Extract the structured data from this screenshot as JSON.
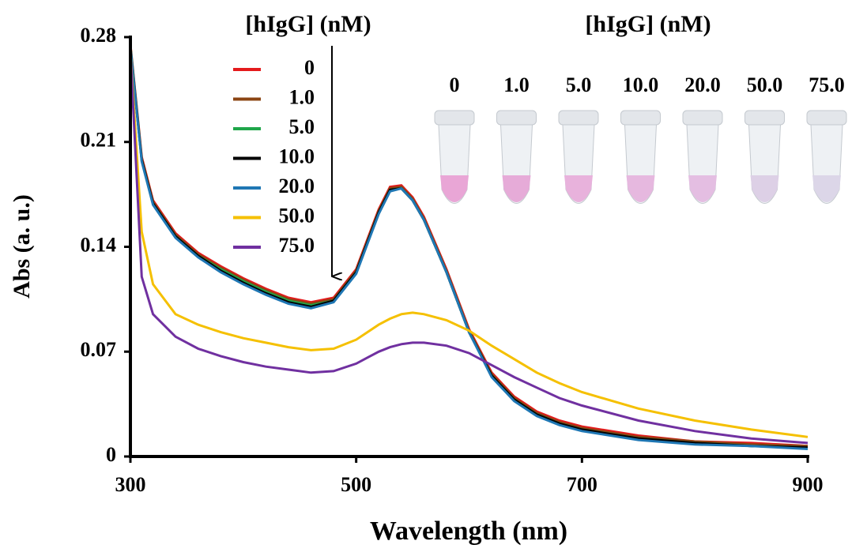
{
  "chart_data": {
    "type": "line",
    "x_label": "Wavelength (nm)",
    "y_label": "Abs (a. u.)",
    "legend_title": "[hIgG] (nM)",
    "inset_title": "[hIgG] (nM)",
    "inset_labels": [
      "0",
      "1.0",
      "5.0",
      "10.0",
      "20.0",
      "50.0",
      "75.0"
    ],
    "xlim": [
      300,
      900
    ],
    "xticks": [
      300,
      500,
      700,
      900
    ],
    "ylim": [
      0,
      0.28
    ],
    "yticks": [
      0,
      0.07,
      0.14,
      0.21,
      0.28
    ],
    "x": [
      300,
      310,
      320,
      340,
      360,
      380,
      400,
      420,
      440,
      460,
      480,
      500,
      510,
      520,
      530,
      540,
      550,
      560,
      580,
      600,
      620,
      640,
      660,
      680,
      700,
      750,
      800,
      850,
      900
    ],
    "series": [
      {
        "name": "0",
        "color": "#e41a1c",
        "values": [
          0.275,
          0.2,
          0.171,
          0.149,
          0.136,
          0.127,
          0.119,
          0.112,
          0.106,
          0.103,
          0.106,
          0.125,
          0.145,
          0.165,
          0.18,
          0.181,
          0.173,
          0.16,
          0.125,
          0.085,
          0.056,
          0.04,
          0.03,
          0.024,
          0.02,
          0.014,
          0.01,
          0.009,
          0.007
        ]
      },
      {
        "name": "1.0",
        "color": "#8b4513",
        "values": [
          0.274,
          0.199,
          0.17,
          0.148,
          0.135,
          0.126,
          0.118,
          0.111,
          0.105,
          0.102,
          0.105,
          0.124,
          0.144,
          0.164,
          0.179,
          0.18,
          0.172,
          0.159,
          0.124,
          0.084,
          0.055,
          0.039,
          0.029,
          0.023,
          0.019,
          0.013,
          0.01,
          0.008,
          0.007
        ]
      },
      {
        "name": "5.0",
        "color": "#1fa64a",
        "values": [
          0.274,
          0.198,
          0.169,
          0.147,
          0.134,
          0.125,
          0.117,
          0.11,
          0.104,
          0.101,
          0.104,
          0.123,
          0.143,
          0.163,
          0.178,
          0.179,
          0.171,
          0.158,
          0.123,
          0.083,
          0.054,
          0.038,
          0.028,
          0.022,
          0.018,
          0.012,
          0.009,
          0.007,
          0.006
        ]
      },
      {
        "name": "10.0",
        "color": "#000000",
        "values": [
          0.273,
          0.198,
          0.169,
          0.147,
          0.134,
          0.124,
          0.116,
          0.109,
          0.103,
          0.1,
          0.104,
          0.123,
          0.143,
          0.163,
          0.178,
          0.179,
          0.171,
          0.158,
          0.123,
          0.083,
          0.054,
          0.038,
          0.028,
          0.022,
          0.018,
          0.012,
          0.009,
          0.007,
          0.006
        ]
      },
      {
        "name": "20.0",
        "color": "#1f77b4",
        "values": [
          0.273,
          0.197,
          0.168,
          0.146,
          0.133,
          0.123,
          0.115,
          0.108,
          0.102,
          0.099,
          0.103,
          0.122,
          0.142,
          0.162,
          0.177,
          0.179,
          0.171,
          0.158,
          0.123,
          0.083,
          0.053,
          0.037,
          0.027,
          0.021,
          0.017,
          0.011,
          0.008,
          0.007,
          0.005
        ]
      },
      {
        "name": "50.0",
        "color": "#f5c000",
        "values": [
          0.27,
          0.15,
          0.115,
          0.095,
          0.088,
          0.083,
          0.079,
          0.076,
          0.073,
          0.071,
          0.072,
          0.078,
          0.083,
          0.088,
          0.092,
          0.095,
          0.096,
          0.095,
          0.091,
          0.084,
          0.074,
          0.065,
          0.056,
          0.049,
          0.043,
          0.032,
          0.024,
          0.018,
          0.013
        ]
      },
      {
        "name": "75.0",
        "color": "#7030a0",
        "values": [
          0.27,
          0.12,
          0.095,
          0.08,
          0.072,
          0.067,
          0.063,
          0.06,
          0.058,
          0.056,
          0.057,
          0.062,
          0.066,
          0.07,
          0.073,
          0.075,
          0.076,
          0.076,
          0.074,
          0.069,
          0.061,
          0.053,
          0.046,
          0.039,
          0.034,
          0.024,
          0.017,
          0.012,
          0.009
        ]
      }
    ]
  }
}
